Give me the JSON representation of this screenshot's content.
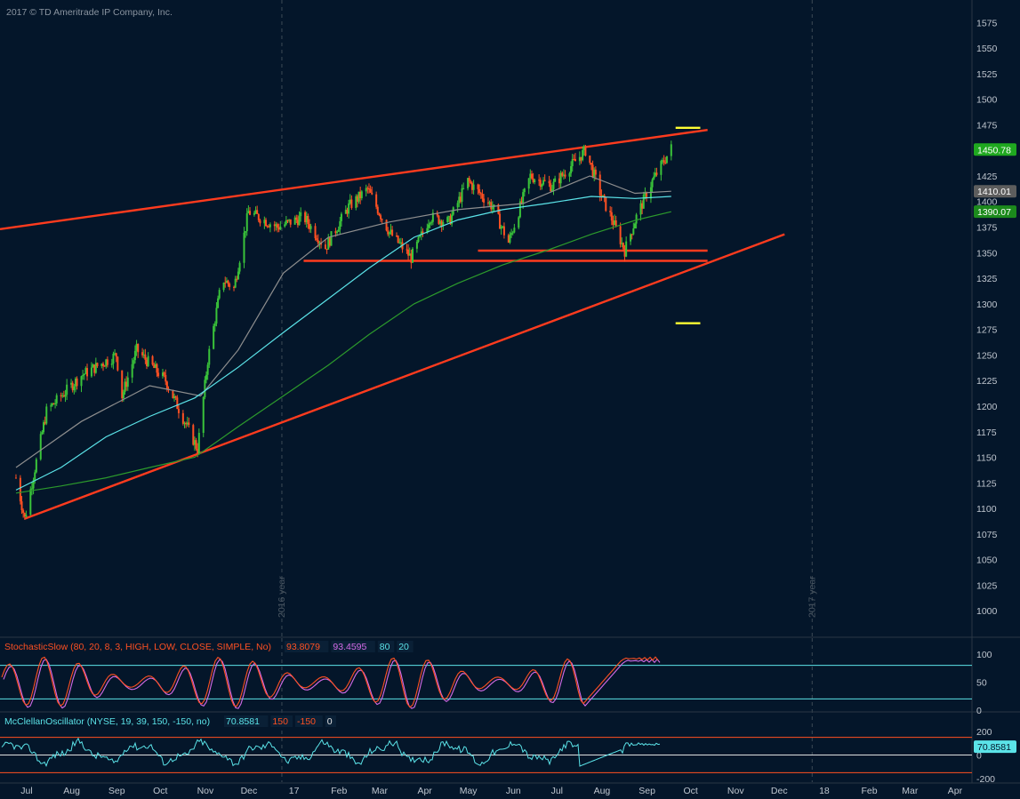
{
  "watermark": "2017 © TD Ameritrade IP Company, Inc.",
  "colors": {
    "background": "#04162a",
    "bull": "#3ac43a",
    "bear": "#ff5022",
    "ma_fast": "#5be3e8",
    "ma_mid": "#8e8e8e",
    "ma_slow": "#2c9a2c",
    "trendline": "#ff3b1e",
    "yellow": "#ffff33",
    "grid_year": "#3d4a55"
  },
  "chart_data": {
    "type": "candlestick",
    "price_axis": {
      "ylim": [
        975,
        1590
      ],
      "ticks": [
        "1575",
        "1550",
        "1525",
        "1500",
        "1475",
        "1450",
        "1425",
        "1400",
        "1375",
        "1350",
        "1325",
        "1300",
        "1275",
        "1250",
        "1225",
        "1200",
        "1175",
        "1150",
        "1125",
        "1100",
        "1075",
        "1050",
        "1025",
        "1000"
      ]
    },
    "time_axis": {
      "labels": [
        "Jul",
        "Aug",
        "Sep",
        "Oct",
        "Nov",
        "Dec",
        "17",
        "Feb",
        "Mar",
        "Apr",
        "May",
        "Jun",
        "Jul",
        "Aug",
        "Sep",
        "Oct",
        "Nov",
        "Dec",
        "18",
        "Feb",
        "Mar",
        "Apr"
      ],
      "year_markers": [
        "2016 year",
        "2017 year"
      ]
    },
    "price_anchors": [
      {
        "date": "2016-07-01",
        "value": 1130
      },
      {
        "date": "2016-07-07",
        "value": 1090
      },
      {
        "date": "2016-07-22",
        "value": 1195
      },
      {
        "date": "2016-08-15",
        "value": 1230
      },
      {
        "date": "2016-09-08",
        "value": 1250
      },
      {
        "date": "2016-09-12",
        "value": 1210
      },
      {
        "date": "2016-09-22",
        "value": 1255
      },
      {
        "date": "2016-10-12",
        "value": 1225
      },
      {
        "date": "2016-11-03",
        "value": 1158
      },
      {
        "date": "2016-11-10",
        "value": 1245
      },
      {
        "date": "2016-11-20",
        "value": 1325
      },
      {
        "date": "2016-11-28",
        "value": 1315
      },
      {
        "date": "2016-12-08",
        "value": 1390
      },
      {
        "date": "2016-12-28",
        "value": 1375
      },
      {
        "date": "2017-01-15",
        "value": 1385
      },
      {
        "date": "2017-01-30",
        "value": 1355
      },
      {
        "date": "2017-02-15",
        "value": 1395
      },
      {
        "date": "2017-02-28",
        "value": 1412
      },
      {
        "date": "2017-03-15",
        "value": 1370
      },
      {
        "date": "2017-03-30",
        "value": 1345
      },
      {
        "date": "2017-04-12",
        "value": 1385
      },
      {
        "date": "2017-04-25",
        "value": 1380
      },
      {
        "date": "2017-05-08",
        "value": 1420
      },
      {
        "date": "2017-05-25",
        "value": 1395
      },
      {
        "date": "2017-06-05",
        "value": 1360
      },
      {
        "date": "2017-06-20",
        "value": 1425
      },
      {
        "date": "2017-07-05",
        "value": 1415
      },
      {
        "date": "2017-07-28",
        "value": 1450
      },
      {
        "date": "2017-08-08",
        "value": 1405
      },
      {
        "date": "2017-08-16",
        "value": 1380
      },
      {
        "date": "2017-08-24",
        "value": 1352
      },
      {
        "date": "2017-09-01",
        "value": 1385
      },
      {
        "date": "2017-09-12",
        "value": 1420
      },
      {
        "date": "2017-09-25",
        "value": 1452
      }
    ],
    "moving_averages": [
      {
        "color": "#8e8e8e",
        "points": [
          [
            "2016-07-01",
            1140
          ],
          [
            "2016-08-15",
            1185
          ],
          [
            "2016-10-01",
            1220
          ],
          [
            "2016-11-05",
            1210
          ],
          [
            "2016-12-01",
            1255
          ],
          [
            "2017-01-01",
            1330
          ],
          [
            "2017-02-01",
            1365
          ],
          [
            "2017-03-15",
            1380
          ],
          [
            "2017-05-01",
            1392
          ],
          [
            "2017-06-15",
            1398
          ],
          [
            "2017-07-31",
            1425
          ],
          [
            "2017-08-31",
            1408
          ],
          [
            "2017-09-25",
            1410
          ]
        ]
      },
      {
        "color": "#5be3e8",
        "points": [
          [
            "2016-07-01",
            1118
          ],
          [
            "2016-08-01",
            1140
          ],
          [
            "2016-09-01",
            1170
          ],
          [
            "2016-10-01",
            1190
          ],
          [
            "2016-11-01",
            1208
          ],
          [
            "2016-12-01",
            1238
          ],
          [
            "2017-01-01",
            1272
          ],
          [
            "2017-02-01",
            1305
          ],
          [
            "2017-03-01",
            1335
          ],
          [
            "2017-04-01",
            1365
          ],
          [
            "2017-05-01",
            1382
          ],
          [
            "2017-06-01",
            1392
          ],
          [
            "2017-07-01",
            1398
          ],
          [
            "2017-08-01",
            1405
          ],
          [
            "2017-08-31",
            1403
          ],
          [
            "2017-09-25",
            1405
          ]
        ]
      },
      {
        "color": "#2c9a2c",
        "points": [
          [
            "2016-07-01",
            1115
          ],
          [
            "2016-08-01",
            1122
          ],
          [
            "2016-09-01",
            1130
          ],
          [
            "2016-10-01",
            1140
          ],
          [
            "2016-11-01",
            1150
          ],
          [
            "2016-12-01",
            1180
          ],
          [
            "2017-01-01",
            1210
          ],
          [
            "2017-02-01",
            1240
          ],
          [
            "2017-03-01",
            1270
          ],
          [
            "2017-04-01",
            1300
          ],
          [
            "2017-05-01",
            1320
          ],
          [
            "2017-06-01",
            1338
          ],
          [
            "2017-07-01",
            1352
          ],
          [
            "2017-08-01",
            1368
          ],
          [
            "2017-09-01",
            1382
          ],
          [
            "2017-09-25",
            1390
          ]
        ]
      }
    ],
    "trendlines": [
      {
        "color": "#ff3b1e",
        "from": [
          "2016-06-20",
          1373
        ],
        "to": [
          "2017-10-20",
          1470
        ]
      },
      {
        "color": "#ff3b1e",
        "from": [
          "2016-07-07",
          1090
        ],
        "to": [
          "2017-12-12",
          1368
        ]
      },
      {
        "color": "#ff3b1e",
        "from": [
          "2017-01-15",
          1342
        ],
        "to": [
          "2017-10-20",
          1342
        ]
      },
      {
        "color": "#ff3b1e",
        "from": [
          "2017-05-15",
          1352
        ],
        "to": [
          "2017-10-20",
          1352
        ]
      }
    ],
    "markers": [
      {
        "color": "#ffff33",
        "from": [
          "2017-09-28",
          1472
        ],
        "to": [
          "2017-10-15",
          1472
        ]
      },
      {
        "color": "#ffff33",
        "from": [
          "2017-09-28",
          1281
        ],
        "to": [
          "2017-10-15",
          1281
        ]
      }
    ],
    "last_values": [
      {
        "label": "1450.78",
        "value": 1450.78,
        "bg": "#1fa81f",
        "fg": "#ffffff"
      },
      {
        "label": "1410.01",
        "value": 1410.01,
        "bg": "#5d5d5d",
        "fg": "#ffffff"
      },
      {
        "label": "1390.07",
        "value": 1390.07,
        "bg": "#1c8a1c",
        "fg": "#ffffff"
      }
    ],
    "stochastic": {
      "title": "StochasticSlow (80, 20, 8, 3, HIGH, LOW, CLOSE, SIMPLE, No)",
      "values": [
        {
          "label": "93.8079",
          "color": "#ff5022"
        },
        {
          "label": "93.4595",
          "color": "#d46be8"
        },
        {
          "label": "80",
          "color": "#5be3e8"
        },
        {
          "label": "20",
          "color": "#5be3e8"
        }
      ],
      "ylim": [
        0,
        100
      ],
      "ticks": [
        "100",
        "50",
        "0"
      ],
      "levels": [
        80,
        20
      ],
      "k_color": "#ff5022",
      "d_color": "#d46be8"
    },
    "mcclellan": {
      "title": "McClellanOscillator (NYSE, 19, 39, 150, -150, no)",
      "values": [
        {
          "label": "70.8581",
          "color": "#5be3e8"
        },
        {
          "label": "150",
          "color": "#ff5022"
        },
        {
          "label": "-150",
          "color": "#ff5022"
        },
        {
          "label": "0",
          "color": "#e0e0e0"
        }
      ],
      "ylim": [
        -230,
        230
      ],
      "ticks": [
        "200",
        "0",
        "-200"
      ],
      "last": {
        "label": "70.8581",
        "value": 70.8581
      },
      "levels": [
        {
          "value": 150,
          "color": "#ff5022"
        },
        {
          "value": 0,
          "color": "#e0e0e0"
        },
        {
          "value": -150,
          "color": "#ff5022"
        }
      ],
      "line_color": "#5be3e8"
    }
  }
}
